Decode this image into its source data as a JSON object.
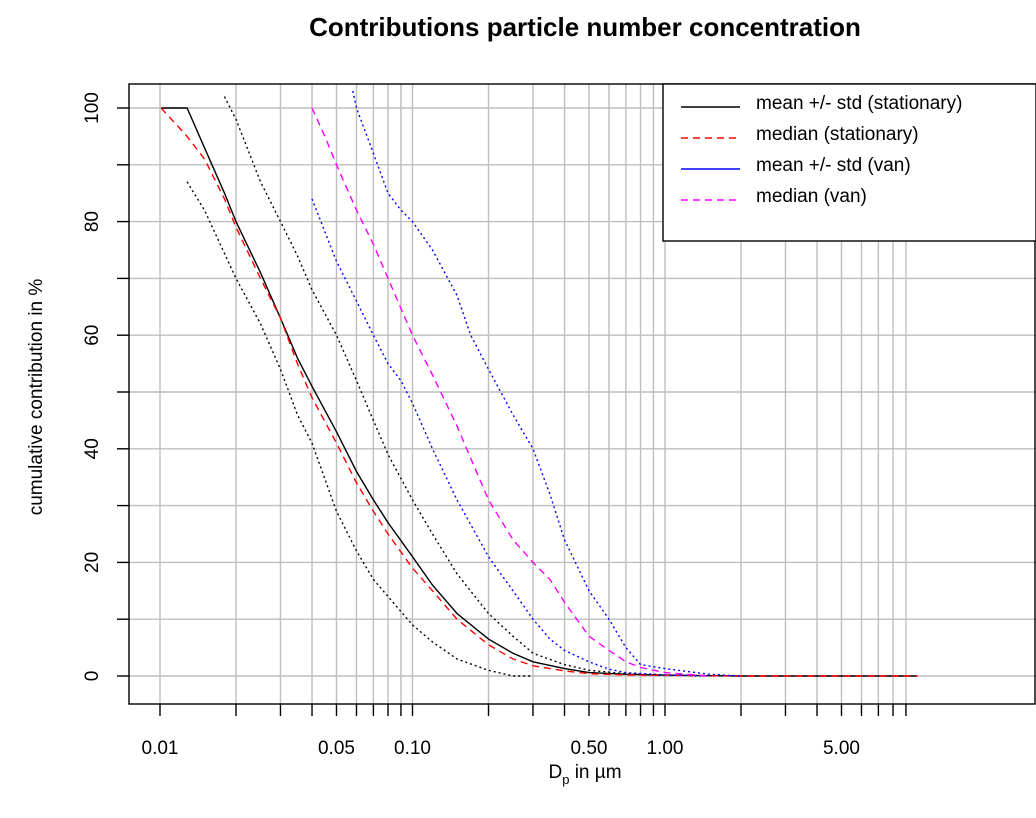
{
  "chart_data": {
    "type": "line",
    "title": "Contributions particle number concentration",
    "xlabel_main": "D",
    "xlabel_sub": "p",
    "xlabel_rest": " in µm",
    "ylabel": "cumulative contribution in %",
    "x_scale": "log",
    "xlim": [
      0.01,
      10
    ],
    "ylim": [
      0,
      100
    ],
    "x_tick_labels": [
      "0.01",
      "0.05",
      "0.10",
      "0.50",
      "1.00",
      "5.00"
    ],
    "x_tick_values": [
      0.01,
      0.05,
      0.1,
      0.5,
      1.0,
      5.0
    ],
    "y_tick_labels": [
      "0",
      "20",
      "40",
      "60",
      "80",
      "100"
    ],
    "y_tick_values": [
      0,
      20,
      40,
      60,
      80,
      100
    ],
    "grid": true,
    "legend": {
      "position": "top-right",
      "entries": [
        {
          "label": "mean +/- std (stationary)",
          "color": "#000000",
          "dash": "solid"
        },
        {
          "label": "median (stationary)",
          "color": "#ff0000",
          "dash": "dashed"
        },
        {
          "label": "mean +/- std (van)",
          "color": "#0000ff",
          "dash": "solid"
        },
        {
          "label": "median (van)",
          "color": "#ff00ff",
          "dash": "dashed"
        }
      ]
    },
    "series": [
      {
        "name": "mean +/- std (stationary)",
        "role": "mean",
        "color": "#000000",
        "dash": "solid",
        "x": [
          0.0101,
          0.0128,
          0.015,
          0.018,
          0.02,
          0.025,
          0.03,
          0.035,
          0.04,
          0.05,
          0.06,
          0.07,
          0.08,
          0.1,
          0.12,
          0.15,
          0.2,
          0.25,
          0.3,
          0.4,
          0.5,
          0.7,
          1.0,
          1.5,
          2.0,
          5.0,
          10.0
        ],
        "y": [
          100,
          100,
          93,
          85,
          80,
          71,
          63,
          56,
          51,
          43,
          36,
          31,
          27,
          21,
          16,
          11,
          6.5,
          4,
          2.5,
          1.3,
          0.6,
          0.3,
          0.15,
          0.05,
          0,
          0,
          0
        ]
      },
      {
        "name": "",
        "role": "mean+std",
        "color": "#000000",
        "dash": "dotted",
        "x": [
          0.018,
          0.02,
          0.025,
          0.03,
          0.035,
          0.04,
          0.05,
          0.06,
          0.07,
          0.08,
          0.1,
          0.12,
          0.15,
          0.2,
          0.25,
          0.3,
          0.4,
          0.5,
          0.7,
          1.0
        ],
        "y": [
          102,
          98,
          87,
          80,
          74,
          68,
          60,
          52,
          45,
          39,
          31,
          25,
          18,
          11,
          7,
          4,
          2,
          1,
          0.4,
          0.1
        ]
      },
      {
        "name": "",
        "role": "mean-std",
        "color": "#000000",
        "dash": "dotted",
        "x": [
          0.0128,
          0.015,
          0.02,
          0.025,
          0.03,
          0.035,
          0.04,
          0.05,
          0.06,
          0.07,
          0.08,
          0.1,
          0.12,
          0.15,
          0.2,
          0.25,
          0.3
        ],
        "y": [
          87,
          82,
          70,
          62,
          54,
          46,
          41,
          29,
          22,
          17,
          14,
          9,
          6,
          3,
          1,
          0,
          0
        ]
      },
      {
        "name": "median (stationary)",
        "role": "median",
        "color": "#ff0000",
        "dash": "dashed",
        "x": [
          0.0101,
          0.0128,
          0.015,
          0.018,
          0.02,
          0.025,
          0.03,
          0.035,
          0.04,
          0.05,
          0.06,
          0.07,
          0.08,
          0.1,
          0.12,
          0.15,
          0.2,
          0.25,
          0.3,
          0.4,
          0.5,
          0.7,
          1.0,
          2.0,
          10.0
        ],
        "y": [
          100,
          95,
          91,
          84,
          79,
          70,
          63,
          55,
          49,
          41,
          34,
          29,
          25,
          19,
          15,
          10,
          5.5,
          3,
          1.8,
          0.9,
          0.4,
          0.2,
          0.1,
          0,
          0
        ]
      },
      {
        "name": "mean +/- std (van)",
        "role": "mean+std",
        "color": "#0000ff",
        "dash": "dotted",
        "x": [
          0.058,
          0.06,
          0.07,
          0.08,
          0.09,
          0.1,
          0.12,
          0.15,
          0.17,
          0.2,
          0.25,
          0.3,
          0.35,
          0.4,
          0.5,
          0.6,
          0.7,
          0.8,
          1.0,
          1.5,
          2.0
        ],
        "y": [
          103,
          100,
          92,
          85,
          82,
          80,
          75,
          67,
          60,
          54,
          46,
          40,
          32,
          24,
          15,
          10,
          5,
          2,
          1.3,
          0.3,
          0
        ]
      },
      {
        "name": "",
        "role": "mean-std",
        "color": "#0000ff",
        "dash": "dotted",
        "x": [
          0.04,
          0.05,
          0.06,
          0.07,
          0.08,
          0.09,
          0.1,
          0.12,
          0.15,
          0.2,
          0.25,
          0.3,
          0.35,
          0.4,
          0.5,
          0.6,
          0.7,
          1.0,
          1.5
        ],
        "y": [
          84,
          73,
          66,
          60,
          55,
          52,
          48,
          40,
          31,
          21,
          15,
          10,
          6.5,
          4.5,
          2.5,
          1.2,
          0.6,
          0.2,
          0
        ]
      },
      {
        "name": "median (van)",
        "role": "median",
        "color": "#ff00ff",
        "dash": "dashed",
        "x": [
          0.04,
          0.045,
          0.05,
          0.06,
          0.07,
          0.08,
          0.1,
          0.12,
          0.15,
          0.2,
          0.25,
          0.3,
          0.35,
          0.4,
          0.5,
          0.6,
          0.7,
          0.8,
          1.0,
          1.5
        ],
        "y": [
          100,
          95,
          90,
          82,
          76,
          70,
          60,
          53,
          44,
          31,
          24,
          20,
          17,
          13,
          7,
          4.5,
          2.5,
          1.5,
          0.6,
          0
        ]
      }
    ]
  }
}
